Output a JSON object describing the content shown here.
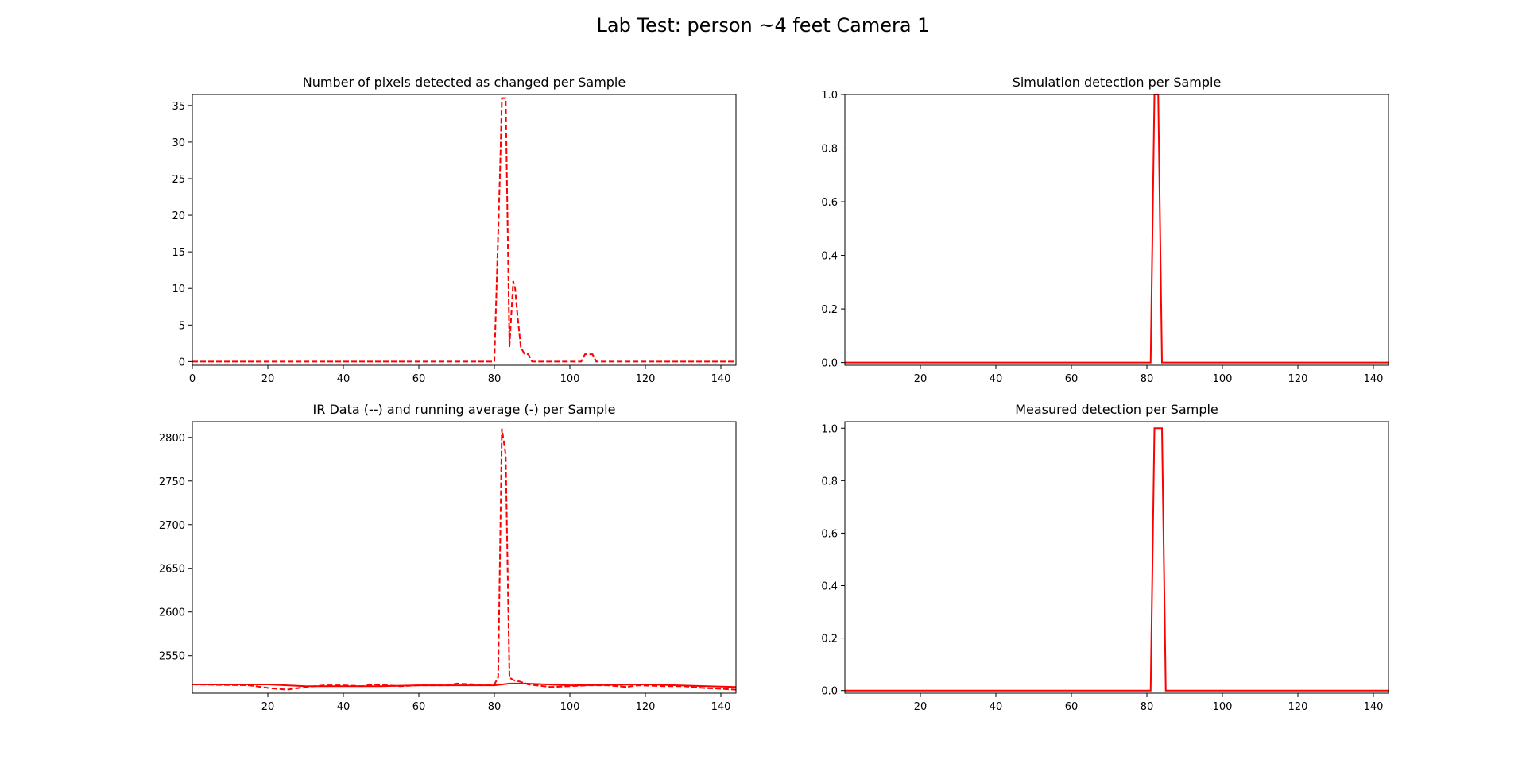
{
  "figure": {
    "suptitle": "Lab Test: person ~4 feet Camera 1",
    "line_color": "#ff0000"
  },
  "chart_data": [
    {
      "type": "line",
      "title": "Number of pixels detected as changed per Sample",
      "xlim": [
        0,
        144
      ],
      "ylim": [
        -0.5,
        36.5
      ],
      "xticks": [
        0,
        20,
        40,
        60,
        80,
        100,
        120,
        140
      ],
      "yticks": [
        0,
        5,
        10,
        15,
        20,
        25,
        30,
        35
      ],
      "grid": false,
      "series": [
        {
          "style": "dashed",
          "points": [
            [
              0,
              0
            ],
            [
              80,
              0
            ],
            [
              81.5,
              26
            ],
            [
              82,
              36
            ],
            [
              83,
              36
            ],
            [
              84,
              2
            ],
            [
              85,
              11
            ],
            [
              85.5,
              10
            ],
            [
              86,
              7
            ],
            [
              87,
              2
            ],
            [
              88,
              1
            ],
            [
              89,
              1
            ],
            [
              90,
              0
            ],
            [
              103,
              0
            ],
            [
              104,
              1
            ],
            [
              106,
              1
            ],
            [
              107,
              0
            ],
            [
              144,
              0
            ]
          ]
        }
      ]
    },
    {
      "type": "line",
      "title": "Simulation detection per Sample",
      "xlim": [
        0,
        144
      ],
      "ylim": [
        -0.01,
        1.0
      ],
      "xticks": [
        20,
        40,
        60,
        80,
        100,
        120,
        140
      ],
      "yticks": [
        0.0,
        0.2,
        0.4,
        0.6,
        0.8,
        1.0
      ],
      "ytick_labels": [
        "0.0",
        "0.2",
        "0.4",
        "0.6",
        "0.8",
        "1.0"
      ],
      "grid": false,
      "series": [
        {
          "style": "solid",
          "points": [
            [
              0,
              0
            ],
            [
              81,
              0
            ],
            [
              82,
              1
            ],
            [
              83,
              1
            ],
            [
              84,
              0
            ],
            [
              144,
              0
            ]
          ]
        }
      ]
    },
    {
      "type": "line",
      "title": "IR Data (--) and running average (-) per Sample",
      "xlim": [
        0,
        144
      ],
      "ylim": [
        2507,
        2818
      ],
      "xticks": [
        20,
        40,
        60,
        80,
        100,
        120,
        140
      ],
      "yticks": [
        2550,
        2600,
        2650,
        2700,
        2750,
        2800
      ],
      "grid": false,
      "series": [
        {
          "style": "dashed",
          "points": [
            [
              0,
              2517
            ],
            [
              15,
              2516
            ],
            [
              20,
              2513
            ],
            [
              25,
              2511
            ],
            [
              30,
              2514
            ],
            [
              35,
              2516
            ],
            [
              40,
              2516
            ],
            [
              45,
              2515
            ],
            [
              48,
              2517
            ],
            [
              55,
              2515
            ],
            [
              60,
              2516
            ],
            [
              68,
              2516
            ],
            [
              70,
              2518
            ],
            [
              75,
              2517
            ],
            [
              79,
              2516
            ],
            [
              80,
              2517
            ],
            [
              81,
              2525
            ],
            [
              82,
              2810
            ],
            [
              83,
              2780
            ],
            [
              84,
              2525
            ],
            [
              85,
              2522
            ],
            [
              87,
              2520
            ],
            [
              89,
              2517
            ],
            [
              95,
              2514
            ],
            [
              100,
              2515
            ],
            [
              105,
              2516
            ],
            [
              110,
              2516
            ],
            [
              115,
              2514
            ],
            [
              118,
              2516
            ],
            [
              125,
              2515
            ],
            [
              130,
              2515
            ],
            [
              135,
              2513
            ],
            [
              140,
              2512
            ],
            [
              144,
              2511
            ]
          ]
        },
        {
          "style": "solid",
          "points": [
            [
              0,
              2517
            ],
            [
              20,
              2517
            ],
            [
              30,
              2515
            ],
            [
              50,
              2515
            ],
            [
              60,
              2516
            ],
            [
              80,
              2516
            ],
            [
              84,
              2518
            ],
            [
              88,
              2518
            ],
            [
              100,
              2516
            ],
            [
              120,
              2517
            ],
            [
              144,
              2514
            ]
          ]
        }
      ]
    },
    {
      "type": "line",
      "title": "Measured detection per Sample",
      "xlim": [
        0,
        144
      ],
      "ylim": [
        -0.01,
        1.025
      ],
      "xticks": [
        20,
        40,
        60,
        80,
        100,
        120,
        140
      ],
      "yticks": [
        0.0,
        0.2,
        0.4,
        0.6,
        0.8,
        1.0
      ],
      "ytick_labels": [
        "0.0",
        "0.2",
        "0.4",
        "0.6",
        "0.8",
        "1.0"
      ],
      "grid": false,
      "series": [
        {
          "style": "solid",
          "points": [
            [
              0,
              0
            ],
            [
              81,
              0
            ],
            [
              82,
              1
            ],
            [
              84,
              1
            ],
            [
              85,
              0
            ],
            [
              144,
              0
            ]
          ]
        }
      ]
    }
  ]
}
